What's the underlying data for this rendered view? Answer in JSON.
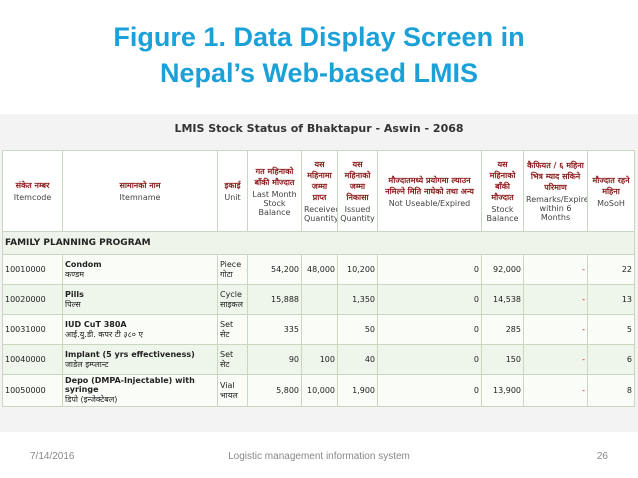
{
  "slide": {
    "title_lines": [
      "Figure 1. Data Display Screen in",
      "Nepal’s Web-based LMIS"
    ],
    "footer": {
      "date": "7/14/2016",
      "text": "Logistic management information system",
      "page": "26"
    }
  },
  "screen": {
    "title": "LMIS Stock Status of Bhaktapur - Aswin - 2068",
    "columns": [
      {
        "ne": "संकेत नम्बर",
        "en": "Itemcode"
      },
      {
        "ne": "सामानको नाम",
        "en": "Itemname"
      },
      {
        "ne": "इकाई",
        "en": "Unit"
      },
      {
        "ne": "गत महिनाको बाँकी मौज्दात",
        "en": "Last Month Stock Balance"
      },
      {
        "ne": "यस महिनामा जम्मा प्राप्त",
        "en": "Received Quantity"
      },
      {
        "ne": "यस महिनाको जम्मा निकासा",
        "en": "Issued Quantity"
      },
      {
        "ne": "मौज्दातमध्ये प्रयोगमा ल्याउन नमिल्ने मिति नाघेको तथा अन्य",
        "en": "Not Useable/Expired"
      },
      {
        "ne": "यस महिनाको बाँकी मौज्दात",
        "en": "Stock Balance"
      },
      {
        "ne": "कैफियत / ६ महिना भित्र म्याद सकिने परिमाण",
        "en": "Remarks/Expired within 6 Months"
      },
      {
        "ne": "मौज्दात रहने महिना",
        "en": "MoSoH"
      }
    ],
    "section": "FAMILY PLANNING PROGRAM",
    "rows": [
      {
        "code": "10010000",
        "name": "Condom",
        "name_ne": "कण्डम",
        "unit": "Piece",
        "unit_ne": "गोटा",
        "values": [
          "54,200",
          "48,000",
          "10,200",
          "0",
          "92,000",
          "-",
          "22"
        ]
      },
      {
        "code": "10020000",
        "name": "Pills",
        "name_ne": "पिल्स",
        "unit": "Cycle",
        "unit_ne": "साइकल",
        "values": [
          "15,888",
          null,
          "1,350",
          "0",
          "14,538",
          "-",
          "13"
        ]
      },
      {
        "code": "10031000",
        "name": "IUD CuT 380A",
        "name_ne": "आई.यु.डी. कपर टी ३८० ए",
        "unit": "Set",
        "unit_ne": "सेट",
        "values": [
          "335",
          null,
          "50",
          "0",
          "285",
          "-",
          "5"
        ]
      },
      {
        "code": "10040000",
        "name": "Implant (5 yrs effectiveness)",
        "name_ne": "जाडेल इम्प्लान्ट",
        "unit": "Set",
        "unit_ne": "सेट",
        "values": [
          "90",
          "100",
          "40",
          "0",
          "150",
          "-",
          "6"
        ]
      },
      {
        "code": "10050000",
        "name": "Depo (DMPA-Injectable) with syringe",
        "name_ne": "डिपो (इन्जेक्टेबल)",
        "unit": "Vial",
        "unit_ne": "भायल",
        "values": [
          "5,800",
          "10,000",
          "1,900",
          "0",
          "13,900",
          "-",
          "8"
        ]
      }
    ]
  }
}
